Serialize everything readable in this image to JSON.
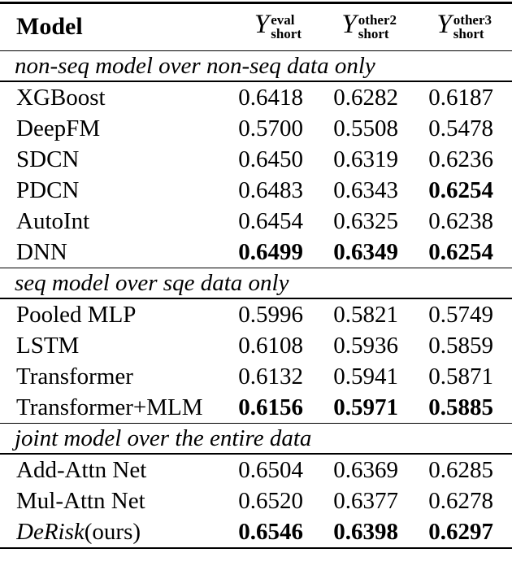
{
  "table": {
    "header": {
      "model_label": "Model",
      "metrics": [
        {
          "symbol": "Y",
          "sup": "eval",
          "sub": "short"
        },
        {
          "symbol": "Y",
          "sup": "other2",
          "sub": "short"
        },
        {
          "symbol": "Y",
          "sup": "other3",
          "sub": "short"
        }
      ]
    },
    "sections": [
      {
        "title": "non-seq model over non-seq data only",
        "rows": [
          {
            "name": "XGBoost",
            "suffix": "",
            "values": [
              "0.6418",
              "0.6282",
              "0.6187"
            ],
            "bold": [
              false,
              false,
              false
            ]
          },
          {
            "name": "DeepFM",
            "suffix": "",
            "values": [
              "0.5700",
              "0.5508",
              "0.5478"
            ],
            "bold": [
              false,
              false,
              false
            ]
          },
          {
            "name": "SDCN",
            "suffix": "",
            "values": [
              "0.6450",
              "0.6319",
              "0.6236"
            ],
            "bold": [
              false,
              false,
              false
            ]
          },
          {
            "name": "PDCN",
            "suffix": "",
            "values": [
              "0.6483",
              "0.6343",
              "0.6254"
            ],
            "bold": [
              false,
              false,
              true
            ]
          },
          {
            "name": "AutoInt",
            "suffix": "",
            "values": [
              "0.6454",
              "0.6325",
              "0.6238"
            ],
            "bold": [
              false,
              false,
              false
            ]
          },
          {
            "name": "DNN",
            "suffix": "",
            "values": [
              "0.6499",
              "0.6349",
              "0.6254"
            ],
            "bold": [
              true,
              true,
              true
            ]
          }
        ]
      },
      {
        "title": "seq model over sqe data only",
        "rows": [
          {
            "name": "Pooled MLP",
            "suffix": "",
            "values": [
              "0.5996",
              "0.5821",
              "0.5749"
            ],
            "bold": [
              false,
              false,
              false
            ]
          },
          {
            "name": "LSTM",
            "suffix": "",
            "values": [
              "0.6108",
              "0.5936",
              "0.5859"
            ],
            "bold": [
              false,
              false,
              false
            ]
          },
          {
            "name": "Transformer",
            "suffix": "",
            "values": [
              "0.6132",
              "0.5941",
              "0.5871"
            ],
            "bold": [
              false,
              false,
              false
            ]
          },
          {
            "name": "Transformer+MLM",
            "suffix": "",
            "values": [
              "0.6156",
              "0.5971",
              "0.5885"
            ],
            "bold": [
              true,
              true,
              true
            ]
          }
        ]
      },
      {
        "title": "joint model over the entire data",
        "rows": [
          {
            "name": "Add-Attn Net",
            "suffix": "",
            "values": [
              "0.6504",
              "0.6369",
              "0.6285"
            ],
            "bold": [
              false,
              false,
              false
            ]
          },
          {
            "name": "Mul-Attn Net",
            "suffix": "",
            "values": [
              "0.6520",
              "0.6377",
              "0.6278"
            ],
            "bold": [
              false,
              false,
              false
            ]
          },
          {
            "name": "DeRisk",
            "suffix": "(ours)",
            "values": [
              "0.6546",
              "0.6398",
              "0.6297"
            ],
            "bold": [
              true,
              true,
              true
            ]
          }
        ]
      }
    ]
  },
  "colors": {
    "text": "#000000",
    "background": "#ffffff",
    "rule": "#000000"
  }
}
